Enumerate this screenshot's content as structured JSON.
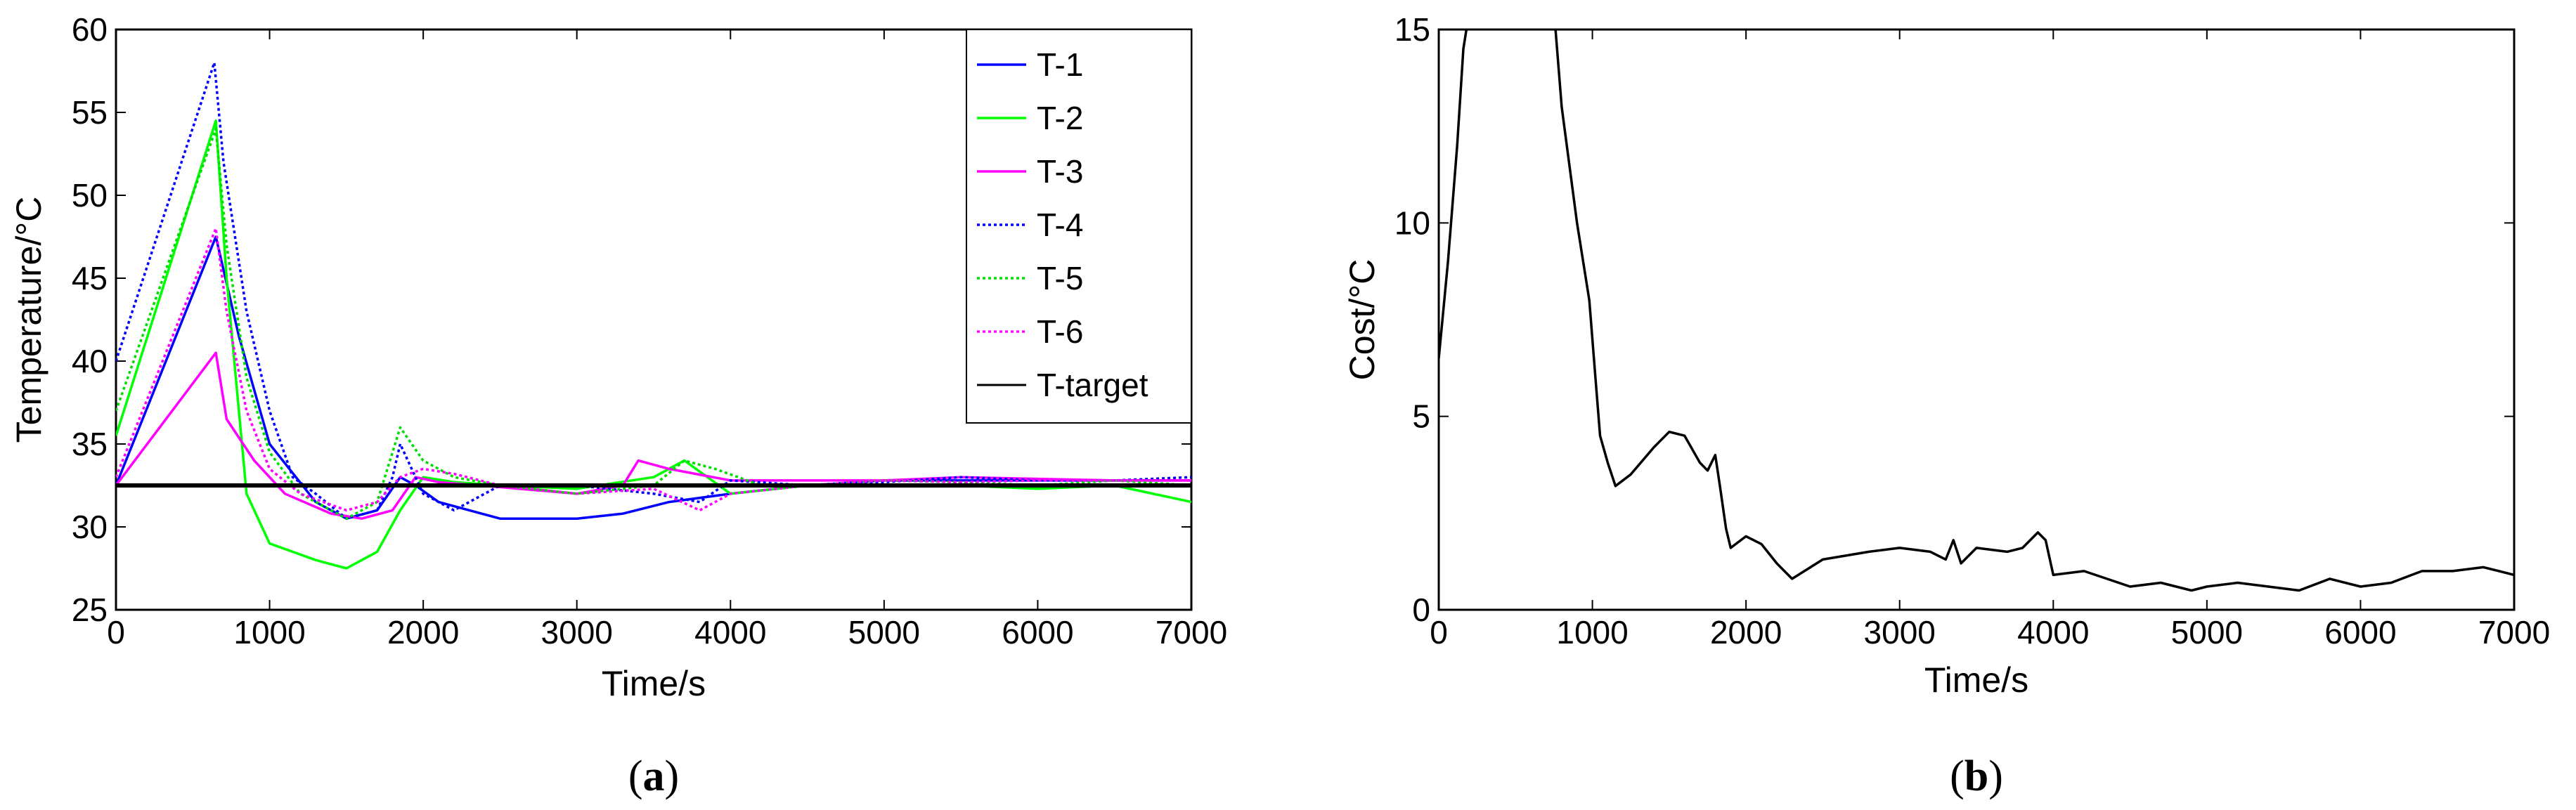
{
  "chart_data": [
    {
      "type": "line",
      "caption_letter": "a",
      "xlabel": "Time/s",
      "ylabel": "Temperature/°C",
      "xlim": [
        0,
        7000
      ],
      "ylim": [
        25,
        60
      ],
      "xticks": [
        "0",
        "1000",
        "2000",
        "3000",
        "4000",
        "5000",
        "6000",
        "7000"
      ],
      "yticks": [
        "25",
        "30",
        "35",
        "40",
        "45",
        "50",
        "55",
        "60"
      ],
      "legend_position": "top-right",
      "series": [
        {
          "name": "T-1",
          "color": "#0000ff",
          "style": "solid",
          "x": [
            0,
            650,
            800,
            1000,
            1300,
            1500,
            1700,
            1850,
            1950,
            2100,
            2500,
            3000,
            3300,
            3600,
            4000,
            4500,
            5000,
            5500,
            6000,
            6500,
            7000
          ],
          "y": [
            32.5,
            47.5,
            41.5,
            35,
            31.5,
            30.5,
            31,
            33,
            32.5,
            31.5,
            30.5,
            30.5,
            30.8,
            31.5,
            32,
            32.5,
            32.8,
            32.8,
            32.8,
            32.8,
            32.8
          ]
        },
        {
          "name": "T-2",
          "color": "#00ff00",
          "style": "solid",
          "x": [
            0,
            650,
            720,
            850,
            1000,
            1300,
            1500,
            1700,
            1850,
            2000,
            2200,
            2500,
            3000,
            3500,
            3700,
            4000,
            4500,
            5000,
            5500,
            6000,
            6500,
            7000
          ],
          "y": [
            35.5,
            54.5,
            45,
            32,
            29,
            28,
            27.5,
            28.5,
            31,
            33,
            32.7,
            32.5,
            32.3,
            33,
            34,
            32,
            32.5,
            32.5,
            32.5,
            32.3,
            32.5,
            31.5
          ]
        },
        {
          "name": "T-3",
          "color": "#ff00ff",
          "style": "solid",
          "x": [
            0,
            650,
            720,
            900,
            1100,
            1400,
            1600,
            1800,
            1950,
            2100,
            2500,
            3000,
            3300,
            3400,
            3600,
            4000,
            4500,
            5000,
            5500,
            6000,
            6500,
            7000
          ],
          "y": [
            32.5,
            40.5,
            36.5,
            34,
            32,
            30.8,
            30.5,
            31,
            33,
            32.7,
            32.4,
            32,
            32.5,
            34,
            33.5,
            32.8,
            32.8,
            32.8,
            33,
            32.9,
            32.8,
            32.8
          ]
        },
        {
          "name": "T-4",
          "color": "#0000ff",
          "style": "dotted",
          "x": [
            0,
            640,
            700,
            850,
            1000,
            1150,
            1300,
            1500,
            1700,
            1800,
            1850,
            2000,
            2200,
            2500,
            3000,
            3500,
            3800,
            4000,
            4500,
            5000,
            5500,
            6000,
            6500,
            7000
          ],
          "y": [
            40,
            58,
            52,
            43,
            37,
            33,
            32,
            30.5,
            31,
            33,
            35,
            32,
            31,
            32.5,
            32.5,
            32,
            31.5,
            32.8,
            32.5,
            32.7,
            33,
            32.8,
            32.8,
            33
          ]
        },
        {
          "name": "T-5",
          "color": "#00dd00",
          "style": "dotted",
          "x": [
            0,
            650,
            720,
            850,
            1000,
            1200,
            1500,
            1700,
            1850,
            2000,
            2200,
            2500,
            3000,
            3500,
            3700,
            3900,
            4200,
            4500,
            5000,
            5500,
            6000,
            6500,
            7000
          ],
          "y": [
            37,
            54,
            47,
            39,
            34.5,
            32,
            30.5,
            31.5,
            36,
            34,
            33,
            32.5,
            32,
            32.5,
            34,
            33.5,
            32.5,
            32.5,
            32.8,
            32.7,
            32.5,
            32.8,
            32.5
          ]
        },
        {
          "name": "T-6",
          "color": "#ff00ff",
          "style": "dotted",
          "x": [
            0,
            650,
            720,
            850,
            1000,
            1200,
            1500,
            1700,
            1850,
            2000,
            2200,
            2500,
            3000,
            3500,
            3800,
            4000,
            4500,
            5000,
            5500,
            6000,
            6500,
            7000
          ],
          "y": [
            33,
            48,
            43,
            37,
            33.5,
            32,
            31,
            31.5,
            33,
            33.5,
            33.2,
            32.5,
            32,
            32.3,
            31,
            32,
            32.5,
            32.8,
            32.7,
            32.8,
            32.8,
            32.8
          ]
        },
        {
          "name": "T-target",
          "color": "#000000",
          "style": "solid",
          "width": 6,
          "x": [
            0,
            7000
          ],
          "y": [
            32.5,
            32.5
          ]
        }
      ]
    },
    {
      "type": "line",
      "caption_letter": "b",
      "xlabel": "Time/s",
      "ylabel": "Cost/°C",
      "xlim": [
        0,
        7000
      ],
      "ylim": [
        0,
        15
      ],
      "xticks": [
        "0",
        "1000",
        "2000",
        "3000",
        "4000",
        "5000",
        "6000",
        "7000"
      ],
      "yticks": [
        "0",
        "5",
        "10",
        "15"
      ],
      "series": [
        {
          "color": "#000000",
          "style": "solid",
          "x": [
            0,
            60,
            120,
            160,
            200,
            750,
            800,
            900,
            980,
            1020,
            1050,
            1100,
            1150,
            1250,
            1400,
            1500,
            1600,
            1700,
            1750,
            1800,
            1830,
            1870,
            1900,
            2000,
            2100,
            2200,
            2300,
            2500,
            2800,
            3000,
            3200,
            3300,
            3350,
            3400,
            3500,
            3700,
            3800,
            3900,
            3950,
            4000,
            4200,
            4500,
            4700,
            4900,
            5000,
            5200,
            5400,
            5600,
            5800,
            6000,
            6200,
            6400,
            6600,
            6800,
            7000
          ],
          "y": [
            6.5,
            9,
            12,
            14.5,
            15.5,
            15.5,
            13,
            10,
            8,
            6,
            4.5,
            3.8,
            3.2,
            3.5,
            4.2,
            4.6,
            4.5,
            3.8,
            3.6,
            4,
            3.2,
            2.1,
            1.6,
            1.9,
            1.7,
            1.2,
            0.8,
            1.3,
            1.5,
            1.6,
            1.5,
            1.3,
            1.8,
            1.2,
            1.6,
            1.5,
            1.6,
            2,
            1.8,
            0.9,
            1,
            0.6,
            0.7,
            0.5,
            0.6,
            0.7,
            0.6,
            0.5,
            0.8,
            0.6,
            0.7,
            1,
            1,
            1.1,
            0.9
          ]
        }
      ]
    }
  ]
}
